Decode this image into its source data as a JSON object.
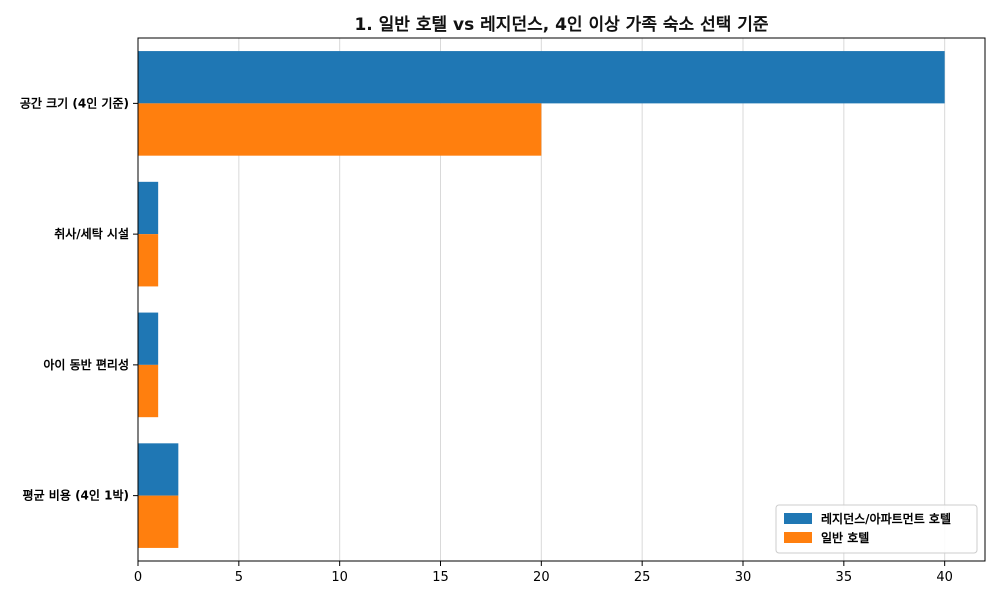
{
  "chart_data": {
    "type": "bar",
    "orientation": "horizontal",
    "title": "1. 일반 호텔 vs 레지던스, 4인 이상 가족 숙소 선택 기준",
    "categories": [
      "공간 크기 (4인 기준)",
      "취사/세탁 시설",
      "아이 동반 편리성",
      "평균 비용 (4인 1박)"
    ],
    "series": [
      {
        "name": "레지던스/아파트먼트 호텔",
        "color": "#1f77b4",
        "values": [
          40,
          1,
          1,
          2
        ]
      },
      {
        "name": "일반 호텔",
        "color": "#ff7f0e",
        "values": [
          20,
          1,
          1,
          2
        ]
      }
    ],
    "xticks": [
      0,
      5,
      10,
      15,
      20,
      25,
      30,
      35,
      40
    ],
    "xlim": [
      0,
      42
    ],
    "xlabel": "",
    "ylabel": "",
    "grid": "x",
    "legend_position": "bottom-right"
  }
}
